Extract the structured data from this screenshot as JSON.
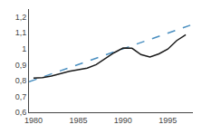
{
  "chart_data": {
    "type": "line",
    "series": [
      {
        "x": [
          1979.5,
          1997.5
        ],
        "values": [
          0.792,
          1.148
        ],
        "color": "#4a8fc0",
        "line_style": "dashed"
      },
      {
        "x": [
          1980,
          1981,
          1982,
          1983,
          1984,
          1985,
          1986,
          1987,
          1988,
          1989,
          1990,
          1991,
          1992,
          1993,
          1994,
          1995,
          1996,
          1997
        ],
        "values": [
          0.815,
          0.818,
          0.828,
          0.843,
          0.858,
          0.868,
          0.878,
          0.9,
          0.938,
          0.975,
          1.005,
          1.003,
          0.963,
          0.948,
          0.968,
          0.998,
          1.052,
          1.088
        ],
        "color": "#1a1a1a",
        "line_style": "solid"
      }
    ],
    "xlim": [
      1979.5,
      1997.8
    ],
    "ylim": [
      0.6,
      1.25
    ],
    "xticks": [
      1980,
      1985,
      1990,
      1995
    ],
    "yticks": [
      {
        "value": 0.6,
        "label": "0,6"
      },
      {
        "value": 0.7,
        "label": "0,7"
      },
      {
        "value": 0.8,
        "label": "0,8"
      },
      {
        "value": 0.9,
        "label": "0,9"
      },
      1,
      {
        "value": 1.1,
        "label": "1,1"
      },
      {
        "value": 1.2,
        "label": "1,2"
      }
    ],
    "grid": false
  }
}
